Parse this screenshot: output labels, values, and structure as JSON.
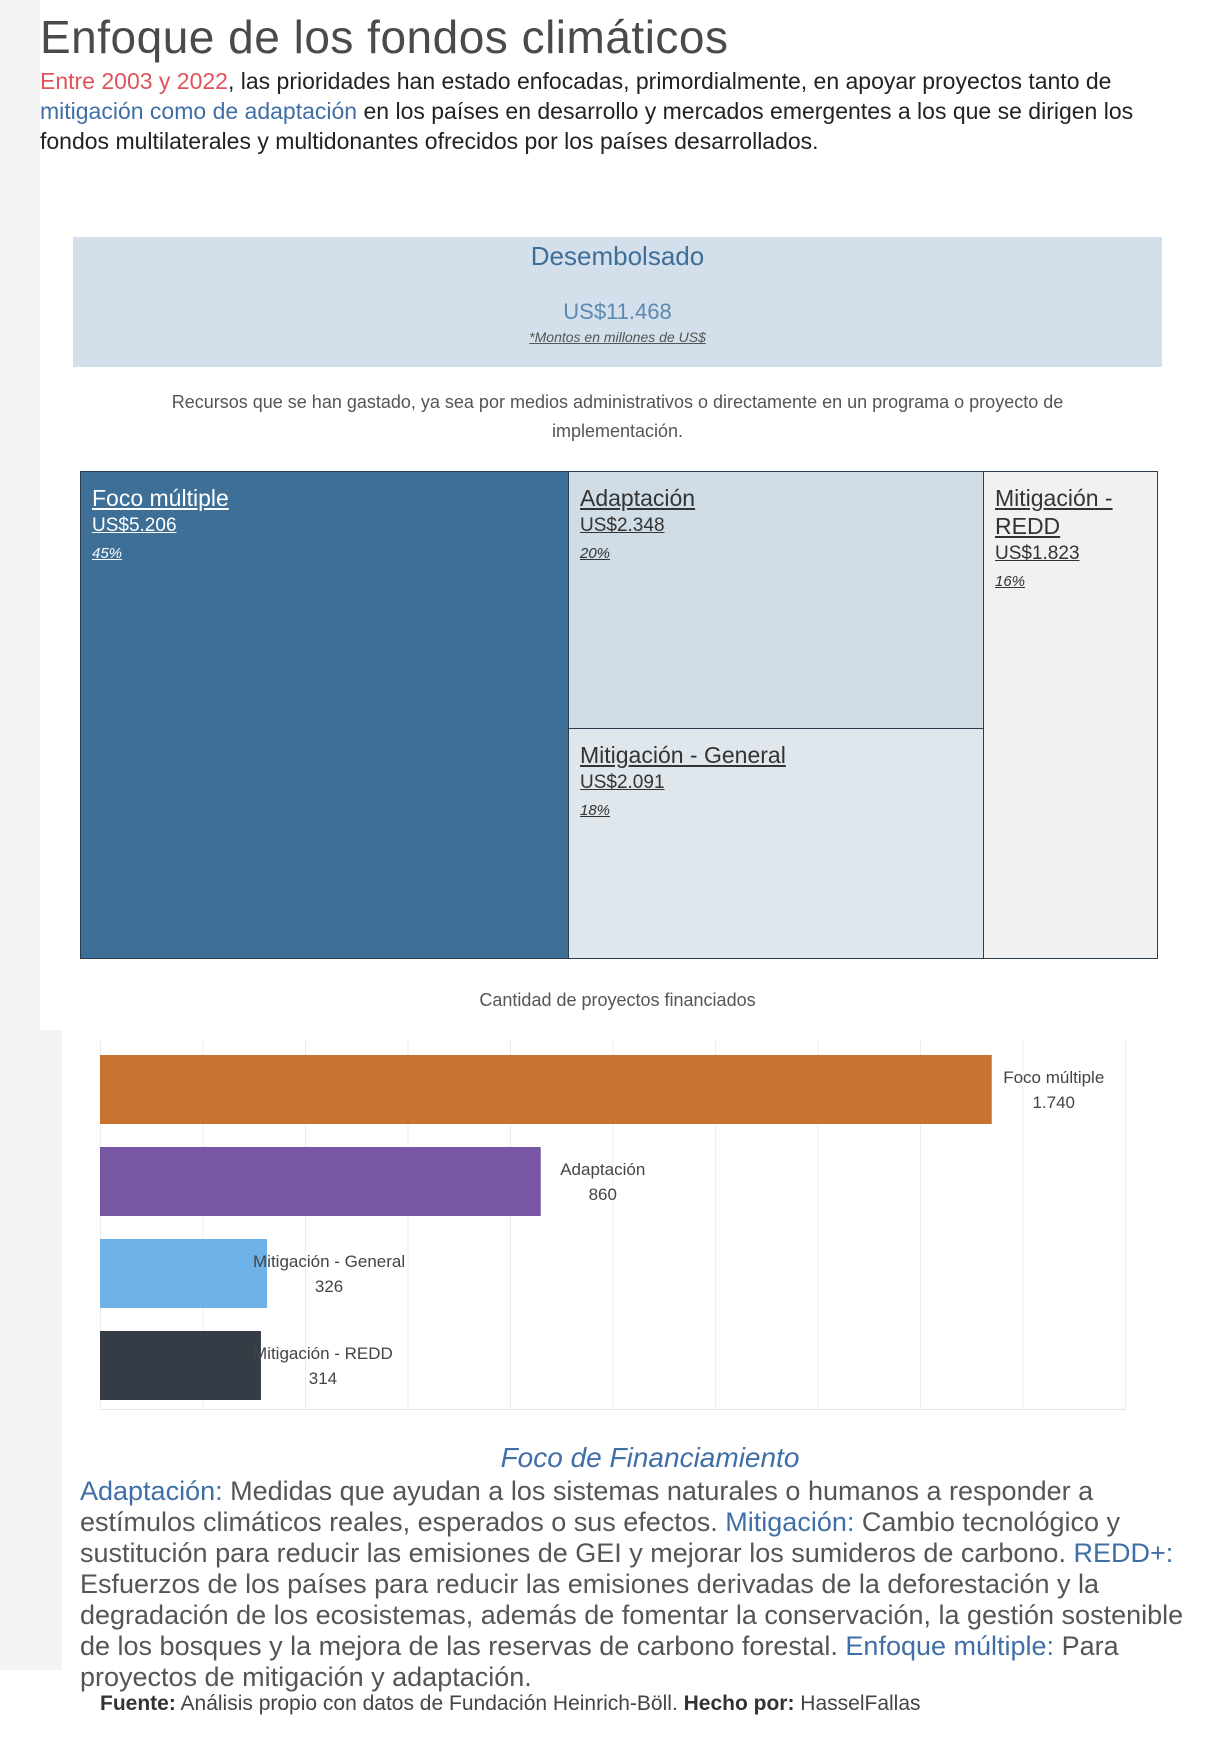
{
  "title": "Enfoque de los fondos climáticos",
  "intro": {
    "highlight_years": "Entre 2003 y 2022",
    "part1": ", las prioridades han estado enfocadas, primordialmente, en apoyar proyectos tanto de ",
    "highlight_types": "mitigación como de adaptación",
    "part2": " en los países en desarrollo y mercados emergentes a los que se dirigen los fondos multilaterales y multidonantes ofrecidos por los países desarrollados."
  },
  "summary": {
    "label": "Desembolsado",
    "amount": "US$11.468",
    "note": "*Montos en millones de US$",
    "description": "Recursos que se han gastado, ya sea por medios administrativos o directamente en un programa o proyecto de implementación."
  },
  "colors": {
    "treemap_foco": "#3d6f97",
    "treemap_adaptacion": "#d0dce6",
    "treemap_mitigacion_general": "#dfe6ec",
    "treemap_redd": "#f1f1f1",
    "bar_foco": "#c97330",
    "bar_adaptacion": "#7756a3",
    "bar_mitigacion_general": "#6eb2e8",
    "bar_redd": "#363c45"
  },
  "chart_data": [
    {
      "type": "treemap",
      "categories": [
        "Foco múltiple",
        "Adaptación",
        "Mitigación - General",
        "Mitigación - REDD"
      ],
      "amounts": [
        "US$5.206",
        "US$2.348",
        "US$2.091",
        "US$1.823"
      ],
      "values": [
        5206,
        2348,
        2091,
        1823
      ],
      "percents": [
        "45%",
        "20%",
        "18%",
        "16%"
      ],
      "total": "US$11.468"
    },
    {
      "type": "bar",
      "title": "Cantidad de proyectos financiados",
      "categories": [
        "Foco múltiple",
        "Adaptación",
        "Mitigación - General",
        "Mitigación - REDD"
      ],
      "values": [
        1740,
        860,
        326,
        314
      ],
      "value_labels": [
        "1.740",
        "860",
        "326",
        "314"
      ],
      "xlim": [
        0,
        2000
      ],
      "grid": true,
      "orientation": "horizontal"
    }
  ],
  "legend": {
    "title": "Foco de Financiamiento",
    "items": [
      {
        "term": "Adaptación:",
        "text": " Medidas que ayudan a los sistemas naturales o humanos a responder a estímulos climáticos reales, esperados o sus efectos. "
      },
      {
        "term": "Mitigación:",
        "text": " Cambio tecnológico y sustitución para reducir las emisiones de GEI y mejorar los sumideros de carbono. "
      },
      {
        "term": "REDD+:",
        "text": " Esfuerzos de los países para reducir las emisiones derivadas de la deforestación y la degradación de los ecosistemas, además de fomentar la conservación, la gestión sostenible de los bosques y la mejora de las reservas de carbono forestal. "
      },
      {
        "term": "Enfoque múltiple:",
        "text": " Para proyectos de mitigación y adaptación."
      }
    ]
  },
  "footer": {
    "source_label": "Fuente:",
    "source_text": " Análisis propio con datos de Fundación Heinrich-Böll. ",
    "author_label": "Hecho por:",
    "author_text": " HasselFallas"
  }
}
